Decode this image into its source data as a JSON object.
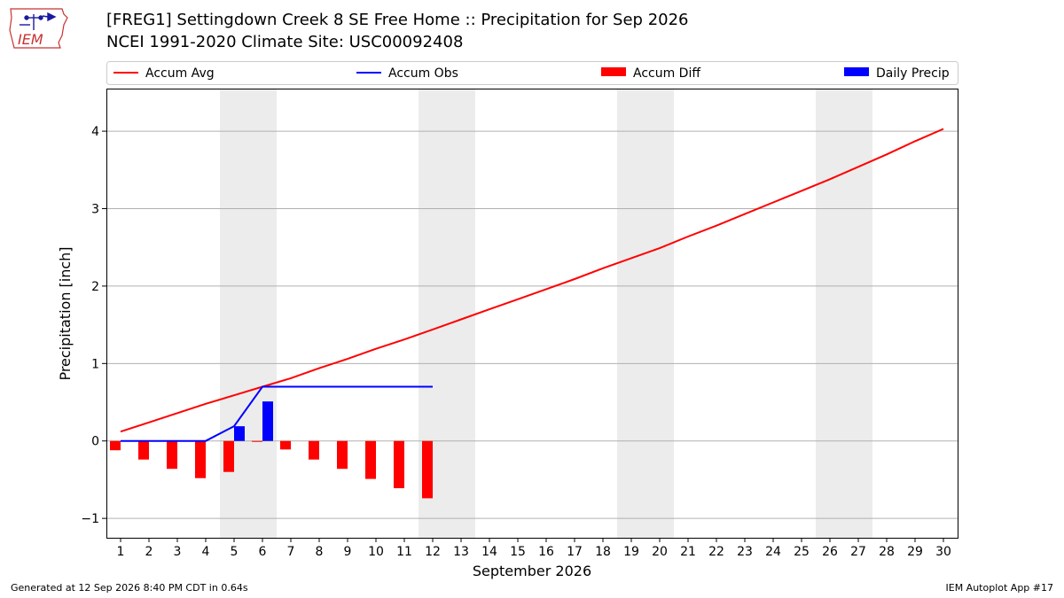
{
  "header": {
    "title_line1": "[FREG1] Settingdown Creek 8 SE Free Home :: Precipitation for Sep 2026",
    "title_line2": "NCEI 1991-2020 Climate Site: USC00092408",
    "logo_text": "IEM"
  },
  "footer": {
    "generated": "Generated at 12 Sep 2026 8:40 PM CDT in 0.64s",
    "app": "IEM Autoplot App #17"
  },
  "colors": {
    "avg": "#ff0000",
    "obs": "#0000ff",
    "diff": "#ff0000",
    "daily": "#0000ff",
    "weekend_shade": "#ececec",
    "grid": "#b0b0b0"
  },
  "chart_data": {
    "type": "bar",
    "xlabel": "September 2026",
    "ylabel": "Precipitation [inch]",
    "xlim": [
      0.5,
      30.5
    ],
    "ylim": [
      -1.25,
      4.55
    ],
    "yticks": [
      -1,
      0,
      1,
      2,
      3,
      4
    ],
    "ytick_labels": [
      "−1",
      "0",
      "1",
      "2",
      "3",
      "4"
    ],
    "x": [
      1,
      2,
      3,
      4,
      5,
      6,
      7,
      8,
      9,
      10,
      11,
      12,
      13,
      14,
      15,
      16,
      17,
      18,
      19,
      20,
      21,
      22,
      23,
      24,
      25,
      26,
      27,
      28,
      29,
      30
    ],
    "shaded_days": [
      5,
      6,
      12,
      13,
      19,
      20,
      26,
      27
    ],
    "grid": "horizontal",
    "legend_position": "top",
    "legend": [
      {
        "label": "Accum Avg",
        "kind": "line",
        "color": "#ff0000"
      },
      {
        "label": "Accum Obs",
        "kind": "line",
        "color": "#0000ff"
      },
      {
        "label": "Accum Diff",
        "kind": "bar",
        "color": "#ff0000"
      },
      {
        "label": "Daily Precip",
        "kind": "bar",
        "color": "#0000ff"
      }
    ],
    "series": [
      {
        "name": "Accum Avg",
        "type": "line",
        "x": [
          1,
          2,
          3,
          4,
          5,
          6,
          7,
          8,
          9,
          10,
          11,
          12,
          13,
          14,
          15,
          16,
          17,
          18,
          19,
          20,
          21,
          22,
          23,
          24,
          25,
          26,
          27,
          28,
          29,
          30
        ],
        "values": [
          0.12,
          0.24,
          0.36,
          0.48,
          0.59,
          0.7,
          0.81,
          0.94,
          1.06,
          1.19,
          1.31,
          1.44,
          1.57,
          1.7,
          1.83,
          1.96,
          2.09,
          2.23,
          2.36,
          2.49,
          2.64,
          2.78,
          2.93,
          3.08,
          3.23,
          3.38,
          3.54,
          3.7,
          3.87,
          4.03
        ]
      },
      {
        "name": "Accum Obs",
        "type": "line",
        "x": [
          1,
          2,
          3,
          4,
          5,
          6,
          7,
          8,
          9,
          10,
          11,
          12
        ],
        "values": [
          0,
          0,
          0,
          0,
          0.19,
          0.7,
          0.7,
          0.7,
          0.7,
          0.7,
          0.7,
          0.7
        ]
      },
      {
        "name": "Accum Diff",
        "type": "bar",
        "x": [
          1,
          2,
          3,
          4,
          5,
          6,
          7,
          8,
          9,
          10,
          11,
          12
        ],
        "values": [
          -0.12,
          -0.24,
          -0.36,
          -0.48,
          -0.4,
          -0.01,
          -0.11,
          -0.24,
          -0.36,
          -0.49,
          -0.61,
          -0.74
        ]
      },
      {
        "name": "Daily Precip",
        "type": "bar",
        "x": [
          5,
          6
        ],
        "values": [
          0.19,
          0.51
        ]
      }
    ]
  }
}
